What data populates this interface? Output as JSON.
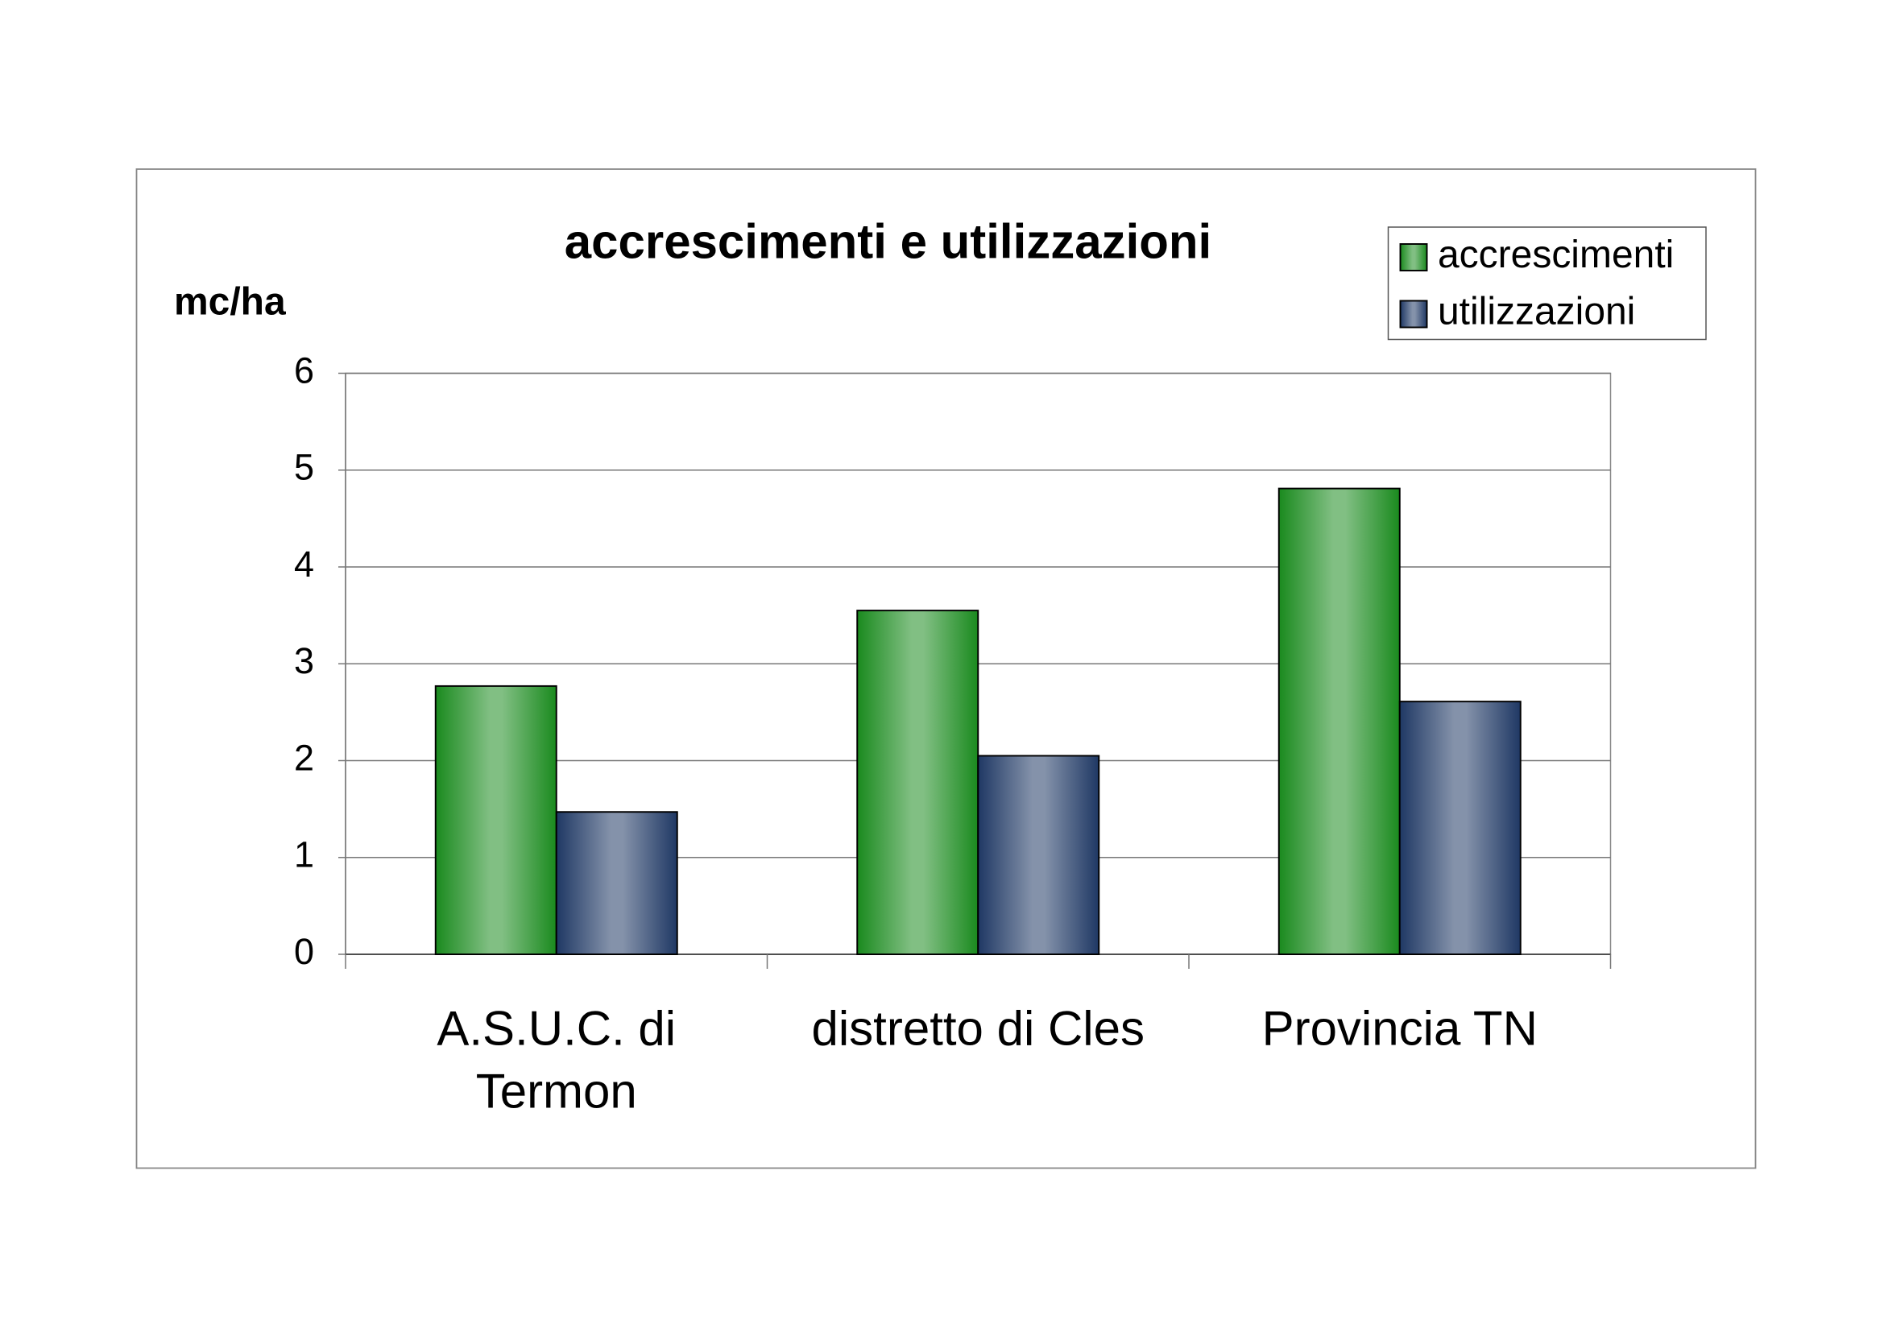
{
  "chart_data": {
    "type": "bar",
    "title": "accrescimenti e utilizzazioni",
    "y_label": "mc/ha",
    "categories": [
      "A.S.U.C. di Termon",
      "distretto di Cles",
      "Provincia TN"
    ],
    "series": [
      {
        "name": "accrescimenti",
        "color": "#1a8a1e",
        "values": [
          2.77,
          3.55,
          4.81
        ]
      },
      {
        "name": "utilizzazioni",
        "color": "#1f3864",
        "values": [
          1.47,
          2.05,
          2.61
        ]
      }
    ],
    "ylim": [
      0,
      6
    ],
    "yticks": [
      0,
      1,
      2,
      3,
      4,
      5,
      6
    ],
    "grid": true,
    "legend": "top-right"
  }
}
